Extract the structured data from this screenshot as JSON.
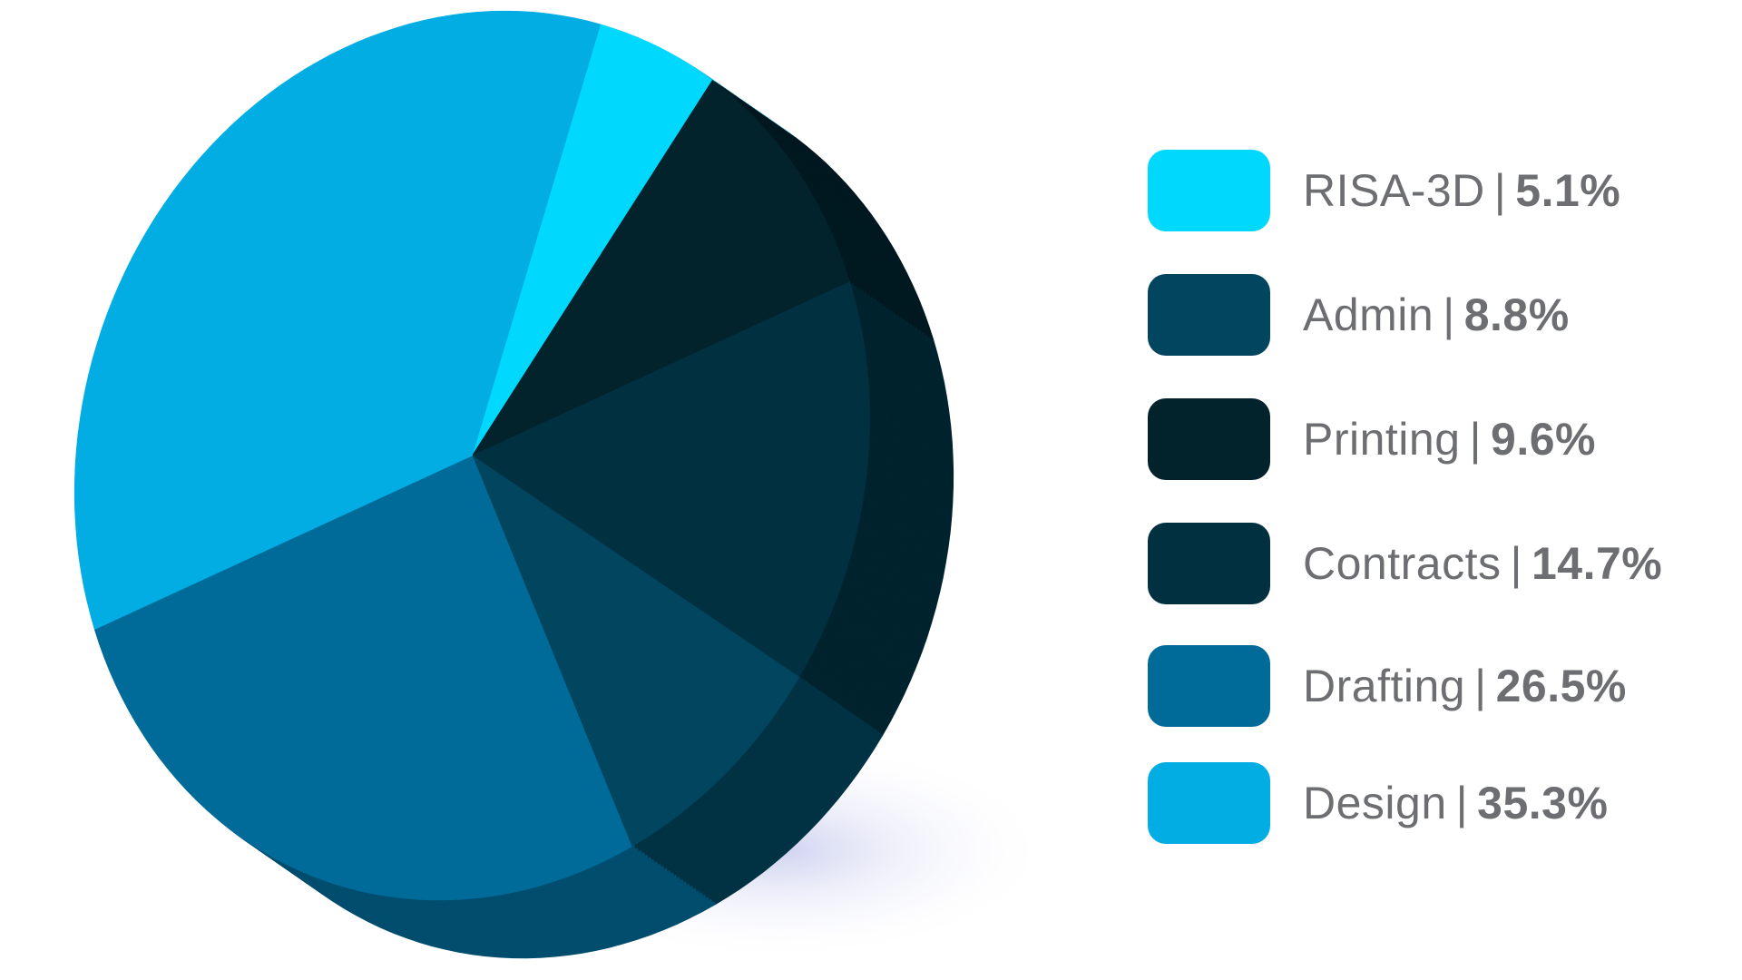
{
  "chart_data": {
    "type": "pie",
    "style": "3d-tilted",
    "legend_position": "right",
    "slices": [
      {
        "label": "RISA-3D",
        "value": 5.1,
        "display": "5.1%",
        "color": "#00d8fe"
      },
      {
        "label": "Printing",
        "value": 9.6,
        "display": "9.6%",
        "color": "#02222c"
      },
      {
        "label": "Contracts",
        "value": 14.7,
        "display": "14.7%",
        "color": "#013040"
      },
      {
        "label": "Admin",
        "value": 8.8,
        "display": "8.8%",
        "color": "#02455f"
      },
      {
        "label": "Drafting",
        "value": 26.5,
        "display": "26.5%",
        "color": "#006b99"
      },
      {
        "label": "Design",
        "value": 35.3,
        "display": "35.3%",
        "color": "#01ade3"
      }
    ],
    "legend": [
      {
        "label": "RISA-3D",
        "value": "5.1%",
        "color": "#00d8fe"
      },
      {
        "label": "Admin",
        "value": "8.8%",
        "color": "#02455f"
      },
      {
        "label": "Printing",
        "value": "9.6%",
        "color": "#02222c"
      },
      {
        "label": "Contracts",
        "value": "14.7%",
        "color": "#013040"
      },
      {
        "label": "Drafting",
        "value": "26.5%",
        "color": "#006b99"
      },
      {
        "label": "Design",
        "value": "35.3%",
        "color": "#01ade3"
      }
    ],
    "separator": "|"
  }
}
